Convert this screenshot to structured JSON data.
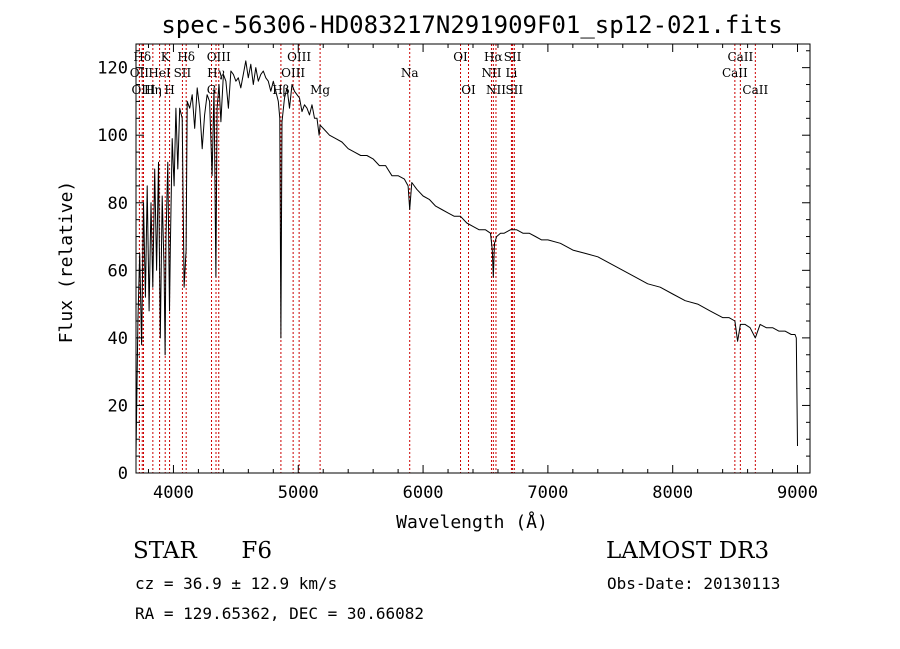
{
  "chart_data": {
    "type": "line",
    "title": "spec-56306-HD083217N291909F01_sp12-021.fits",
    "xlabel": "Wavelength (Å)",
    "ylabel": "Flux (relative)",
    "xlim": [
      3700,
      9100
    ],
    "ylim": [
      0,
      127
    ],
    "xticks": [
      4000,
      5000,
      6000,
      7000,
      8000,
      9000
    ],
    "yticks": [
      0,
      20,
      40,
      60,
      80,
      100,
      120
    ],
    "series": [
      {
        "name": "spectrum",
        "x": [
          3700,
          3715,
          3730,
          3745,
          3760,
          3775,
          3790,
          3805,
          3820,
          3835,
          3850,
          3865,
          3880,
          3895,
          3910,
          3925,
          3933,
          3940,
          3955,
          3968,
          3975,
          3990,
          4005,
          4020,
          4035,
          4050,
          4070,
          4085,
          4101,
          4110,
          4130,
          4150,
          4170,
          4190,
          4210,
          4230,
          4250,
          4270,
          4290,
          4310,
          4325,
          4340,
          4350,
          4365,
          4380,
          4400,
          4420,
          4440,
          4460,
          4480,
          4500,
          4520,
          4540,
          4560,
          4580,
          4600,
          4620,
          4640,
          4660,
          4680,
          4700,
          4720,
          4740,
          4760,
          4780,
          4800,
          4820,
          4840,
          4852,
          4861,
          4870,
          4890,
          4910,
          4930,
          4950,
          4970,
          4990,
          5010,
          5030,
          5050,
          5070,
          5090,
          5110,
          5130,
          5150,
          5167,
          5175,
          5200,
          5250,
          5300,
          5350,
          5400,
          5450,
          5500,
          5550,
          5600,
          5650,
          5700,
          5750,
          5800,
          5850,
          5880,
          5893,
          5910,
          5950,
          6000,
          6050,
          6100,
          6150,
          6200,
          6250,
          6300,
          6350,
          6400,
          6450,
          6500,
          6540,
          6555,
          6563,
          6572,
          6590,
          6620,
          6650,
          6700,
          6750,
          6800,
          6850,
          6900,
          6950,
          7000,
          7100,
          7200,
          7300,
          7400,
          7500,
          7600,
          7700,
          7800,
          7900,
          8000,
          8100,
          8200,
          8300,
          8400,
          8450,
          8498,
          8520,
          8542,
          8580,
          8620,
          8662,
          8700,
          8750,
          8800,
          8850,
          8900,
          8950,
          8980,
          8990,
          9000
        ],
        "values": [
          5,
          45,
          65,
          38,
          80,
          52,
          85,
          48,
          80,
          55,
          90,
          60,
          92,
          40,
          82,
          60,
          35,
          70,
          92,
          48,
          66,
          99,
          85,
          108,
          90,
          108,
          105,
          55,
          66,
          110,
          108,
          112,
          102,
          114,
          108,
          96,
          106,
          112,
          110,
          88,
          114,
          58,
          108,
          115,
          104,
          118,
          116,
          108,
          119,
          118,
          116,
          117,
          114,
          118,
          122,
          117,
          121,
          115,
          120,
          116,
          118,
          119,
          117,
          116,
          113,
          116,
          113,
          110,
          105,
          40,
          104,
          111,
          114,
          108,
          115,
          113,
          112,
          111,
          107,
          109,
          108,
          106,
          109,
          105,
          105,
          100,
          103,
          102,
          100,
          99,
          98,
          96,
          95,
          94,
          94,
          93,
          91,
          91,
          88,
          88,
          87,
          85,
          78,
          86,
          84,
          82,
          81,
          79,
          78,
          77,
          76,
          76,
          74,
          73,
          72,
          72,
          71,
          66,
          58,
          68,
          70,
          71,
          71,
          72,
          72,
          71,
          71,
          70,
          69,
          69,
          68,
          66,
          65,
          64,
          62,
          60,
          58,
          56,
          55,
          53,
          51,
          50,
          48,
          46,
          46,
          45,
          39,
          44,
          44,
          43,
          40,
          44,
          43,
          43,
          42,
          42,
          41,
          41,
          40,
          8
        ]
      }
    ],
    "lines": [
      {
        "label": "Hδ",
        "x": 3750,
        "row": 0
      },
      {
        "label": "K",
        "x": 3934,
        "row": 0
      },
      {
        "label": "Hδ",
        "x": 4102,
        "row": 0
      },
      {
        "label": "OII",
        "x": 3727,
        "row": 1
      },
      {
        "label": "HeI",
        "x": 3889,
        "row": 1
      },
      {
        "label": "SII",
        "x": 4072,
        "row": 1
      },
      {
        "label": "OIII",
        "x": 3760,
        "row": 2
      },
      {
        "label": "Hη",
        "x": 3835,
        "row": 2
      },
      {
        "label": "H",
        "x": 3969,
        "row": 2
      },
      {
        "label": "OIII",
        "x": 4363,
        "row": 0
      },
      {
        "label": "Hγ",
        "x": 4341,
        "row": 1
      },
      {
        "label": "G",
        "x": 4305,
        "row": 2
      },
      {
        "label": "OIII",
        "x": 5007,
        "row": 0
      },
      {
        "label": "OIII",
        "x": 4959,
        "row": 1
      },
      {
        "label": "Hβ",
        "x": 4861,
        "row": 2
      },
      {
        "label": "Mg",
        "x": 5175,
        "row": 2
      },
      {
        "label": "Na",
        "x": 5893,
        "row": 1
      },
      {
        "label": "OI",
        "x": 6300,
        "row": 0
      },
      {
        "label": "OI",
        "x": 6364,
        "row": 2
      },
      {
        "label": "Hα",
        "x": 6563,
        "row": 0
      },
      {
        "label": "NII",
        "x": 6548,
        "row": 1
      },
      {
        "label": "NII",
        "x": 6584,
        "row": 2
      },
      {
        "label": "SII",
        "x": 6717,
        "row": 0
      },
      {
        "label": "Li",
        "x": 6708,
        "row": 1
      },
      {
        "label": "SII",
        "x": 6731,
        "row": 2
      },
      {
        "label": "CaII",
        "x": 8542,
        "row": 0
      },
      {
        "label": "CaII",
        "x": 8498,
        "row": 1
      },
      {
        "label": "CaII",
        "x": 8662,
        "row": 2
      }
    ]
  },
  "footer": {
    "class": "STAR",
    "subclass": "F6",
    "survey": "LAMOST DR3",
    "cz": "cz = 36.9 ± 12.9 km/s",
    "obs_date": "Obs-Date: 20130113",
    "coords": "RA = 129.65362, DEC =  30.66082"
  },
  "colors": {
    "line_marker": "#cc0000",
    "spectrum": "#000000",
    "axis": "#000000"
  }
}
